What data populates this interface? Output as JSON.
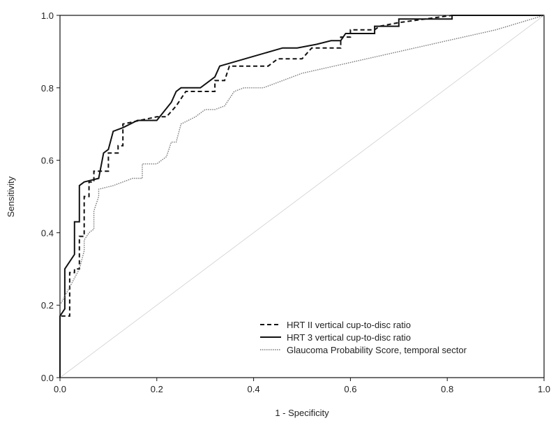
{
  "chart_data": {
    "type": "line",
    "title": "",
    "xlabel": "1 - Specificity",
    "ylabel": "Sensitivity",
    "xlim": [
      0.0,
      1.0
    ],
    "ylim": [
      0.0,
      1.0
    ],
    "x_ticks": [
      "0.0",
      "0.2",
      "0.4",
      "0.6",
      "0.8",
      "1.0"
    ],
    "y_ticks": [
      "0.0",
      "0.2",
      "0.4",
      "0.6",
      "0.8",
      "1.0"
    ],
    "grid": false,
    "legend_position": "bottom-right",
    "series": [
      {
        "name": "HRT II vertical cup-to-disc ratio",
        "style": "dashed",
        "color": "#111111",
        "points": [
          [
            0.0,
            0.0
          ],
          [
            0.0,
            0.17
          ],
          [
            0.02,
            0.17
          ],
          [
            0.02,
            0.29
          ],
          [
            0.03,
            0.29
          ],
          [
            0.03,
            0.3
          ],
          [
            0.04,
            0.3
          ],
          [
            0.04,
            0.39
          ],
          [
            0.05,
            0.39
          ],
          [
            0.05,
            0.5
          ],
          [
            0.06,
            0.5
          ],
          [
            0.06,
            0.54
          ],
          [
            0.07,
            0.54
          ],
          [
            0.07,
            0.57
          ],
          [
            0.1,
            0.57
          ],
          [
            0.1,
            0.62
          ],
          [
            0.12,
            0.62
          ],
          [
            0.12,
            0.64
          ],
          [
            0.13,
            0.64
          ],
          [
            0.13,
            0.7
          ],
          [
            0.2,
            0.72
          ],
          [
            0.22,
            0.72
          ],
          [
            0.24,
            0.75
          ],
          [
            0.25,
            0.77
          ],
          [
            0.26,
            0.79
          ],
          [
            0.32,
            0.79
          ],
          [
            0.32,
            0.82
          ],
          [
            0.34,
            0.82
          ],
          [
            0.35,
            0.86
          ],
          [
            0.43,
            0.86
          ],
          [
            0.45,
            0.88
          ],
          [
            0.5,
            0.88
          ],
          [
            0.52,
            0.91
          ],
          [
            0.58,
            0.91
          ],
          [
            0.58,
            0.94
          ],
          [
            0.6,
            0.94
          ],
          [
            0.6,
            0.96
          ],
          [
            0.65,
            0.96
          ],
          [
            0.66,
            0.97
          ],
          [
            0.7,
            0.98
          ],
          [
            0.81,
            1.0
          ],
          [
            1.0,
            1.0
          ]
        ]
      },
      {
        "name": "HRT 3 vertical cup-to-disc ratio",
        "style": "solid",
        "color": "#111111",
        "points": [
          [
            0.0,
            0.0
          ],
          [
            0.0,
            0.17
          ],
          [
            0.01,
            0.19
          ],
          [
            0.01,
            0.3
          ],
          [
            0.03,
            0.34
          ],
          [
            0.03,
            0.43
          ],
          [
            0.04,
            0.43
          ],
          [
            0.04,
            0.53
          ],
          [
            0.05,
            0.54
          ],
          [
            0.08,
            0.55
          ],
          [
            0.09,
            0.62
          ],
          [
            0.1,
            0.63
          ],
          [
            0.11,
            0.68
          ],
          [
            0.13,
            0.69
          ],
          [
            0.16,
            0.71
          ],
          [
            0.2,
            0.71
          ],
          [
            0.23,
            0.76
          ],
          [
            0.24,
            0.79
          ],
          [
            0.25,
            0.8
          ],
          [
            0.29,
            0.8
          ],
          [
            0.32,
            0.83
          ],
          [
            0.33,
            0.86
          ],
          [
            0.46,
            0.91
          ],
          [
            0.49,
            0.91
          ],
          [
            0.53,
            0.92
          ],
          [
            0.56,
            0.93
          ],
          [
            0.58,
            0.93
          ],
          [
            0.59,
            0.95
          ],
          [
            0.65,
            0.95
          ],
          [
            0.65,
            0.97
          ],
          [
            0.7,
            0.97
          ],
          [
            0.7,
            0.99
          ],
          [
            0.81,
            0.99
          ],
          [
            0.81,
            1.0
          ],
          [
            1.0,
            1.0
          ]
        ]
      },
      {
        "name": "Glaucoma Probability Score, temporal sector",
        "style": "dotted",
        "color": "#777777",
        "points": [
          [
            0.0,
            0.2
          ],
          [
            0.02,
            0.25
          ],
          [
            0.04,
            0.3
          ],
          [
            0.05,
            0.35
          ],
          [
            0.05,
            0.38
          ],
          [
            0.06,
            0.4
          ],
          [
            0.07,
            0.41
          ],
          [
            0.07,
            0.46
          ],
          [
            0.08,
            0.5
          ],
          [
            0.08,
            0.52
          ],
          [
            0.11,
            0.53
          ],
          [
            0.15,
            0.55
          ],
          [
            0.17,
            0.55
          ],
          [
            0.17,
            0.59
          ],
          [
            0.2,
            0.59
          ],
          [
            0.21,
            0.6
          ],
          [
            0.22,
            0.61
          ],
          [
            0.23,
            0.65
          ],
          [
            0.24,
            0.65
          ],
          [
            0.25,
            0.7
          ],
          [
            0.28,
            0.72
          ],
          [
            0.3,
            0.74
          ],
          [
            0.32,
            0.74
          ],
          [
            0.34,
            0.75
          ],
          [
            0.35,
            0.77
          ],
          [
            0.36,
            0.79
          ],
          [
            0.38,
            0.8
          ],
          [
            0.42,
            0.8
          ],
          [
            0.5,
            0.84
          ],
          [
            0.6,
            0.87
          ],
          [
            0.7,
            0.9
          ],
          [
            0.8,
            0.93
          ],
          [
            0.9,
            0.96
          ],
          [
            1.0,
            1.0
          ]
        ]
      }
    ]
  }
}
